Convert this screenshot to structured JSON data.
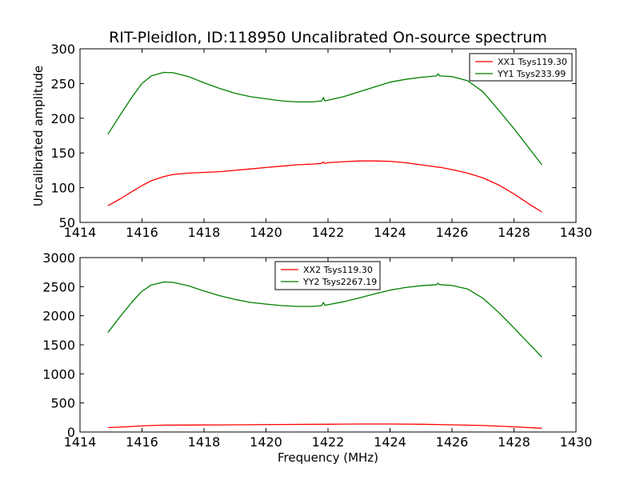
{
  "chart_data": [
    {
      "type": "line",
      "title": "RIT-Pleidlon, ID:118950 Uncalibrated On-source spectrum",
      "xlabel": "",
      "ylabel": "Uncalibrated amplitude",
      "xlim": [
        1414,
        1430
      ],
      "ylim": [
        50,
        300
      ],
      "xticks": [
        1414,
        1416,
        1418,
        1420,
        1422,
        1424,
        1426,
        1428,
        1430
      ],
      "yticks": [
        50,
        100,
        150,
        200,
        250,
        300
      ],
      "grid": false,
      "legend_position": "top-right",
      "series": [
        {
          "name": "XX1 Tsys119.30",
          "color": "#ff0000",
          "x": [
            1414.9,
            1415.3,
            1415.7,
            1416.0,
            1416.3,
            1416.7,
            1417.0,
            1417.5,
            1418.0,
            1418.5,
            1419.0,
            1419.5,
            1420.0,
            1420.5,
            1421.0,
            1421.5,
            1421.8,
            1421.85,
            1421.9,
            1422.0,
            1422.5,
            1423.0,
            1423.5,
            1424.0,
            1424.5,
            1425.0,
            1425.5,
            1425.55,
            1425.6,
            1426.0,
            1426.5,
            1427.0,
            1427.5,
            1428.0,
            1428.5,
            1428.9
          ],
          "y": [
            74,
            84,
            95,
            103,
            110,
            116,
            119,
            121,
            122,
            123,
            125,
            127,
            129,
            131,
            133,
            134,
            135,
            137,
            135,
            136,
            137.5,
            138.5,
            138.5,
            138,
            136,
            133,
            130,
            129,
            129.5,
            126,
            121,
            114,
            104,
            91,
            76,
            65
          ]
        },
        {
          "name": "YY1 Tsys233.99",
          "color": "#008000",
          "x": [
            1414.9,
            1415.3,
            1415.7,
            1416.0,
            1416.3,
            1416.7,
            1417.0,
            1417.5,
            1418.0,
            1418.5,
            1419.0,
            1419.5,
            1420.0,
            1420.5,
            1421.0,
            1421.5,
            1421.8,
            1421.85,
            1421.9,
            1422.0,
            1422.5,
            1423.0,
            1423.5,
            1424.0,
            1424.5,
            1425.0,
            1425.5,
            1425.55,
            1425.6,
            1426.0,
            1426.5,
            1427.0,
            1427.5,
            1428.0,
            1428.5,
            1428.9
          ],
          "y": [
            177,
            205,
            232,
            250,
            261,
            266,
            265.5,
            260,
            251,
            243,
            236,
            231,
            228,
            225,
            223.5,
            223.5,
            225,
            230,
            225,
            226,
            231,
            238,
            245,
            252,
            256,
            259,
            261,
            264,
            261,
            260,
            254,
            238,
            212,
            185,
            156,
            133
          ]
        }
      ]
    },
    {
      "type": "line",
      "title": "",
      "xlabel": "Frequency (MHz)",
      "ylabel": "",
      "xlim": [
        1414,
        1430
      ],
      "ylim": [
        0,
        3000
      ],
      "xticks": [
        1414,
        1416,
        1418,
        1420,
        1422,
        1424,
        1426,
        1428,
        1430
      ],
      "yticks": [
        0,
        500,
        1000,
        1500,
        2000,
        2500,
        3000
      ],
      "grid": false,
      "legend_position": "top-center",
      "series": [
        {
          "name": "XX2 Tsys119.30",
          "color": "#ff0000",
          "x": [
            1414.9,
            1415.5,
            1416.0,
            1416.7,
            1417.5,
            1418.5,
            1419.5,
            1420.5,
            1421.5,
            1422.0,
            1422.5,
            1423.0,
            1424.0,
            1425.0,
            1426.0,
            1427.0,
            1428.0,
            1428.9
          ],
          "y": [
            75,
            90,
            105,
            118,
            120,
            122,
            125,
            129,
            132,
            134,
            136,
            137,
            137,
            133,
            124,
            111,
            90,
            65
          ]
        },
        {
          "name": "YY2 Tsys2267.19",
          "color": "#008000",
          "x": [
            1414.9,
            1415.3,
            1415.7,
            1416.0,
            1416.3,
            1416.7,
            1417.0,
            1417.5,
            1418.0,
            1418.5,
            1419.0,
            1419.5,
            1420.0,
            1420.5,
            1421.0,
            1421.5,
            1421.8,
            1421.85,
            1421.9,
            1422.0,
            1422.5,
            1423.0,
            1423.5,
            1424.0,
            1424.5,
            1425.0,
            1425.5,
            1425.55,
            1425.6,
            1426.0,
            1426.5,
            1427.0,
            1427.5,
            1428.0,
            1428.5,
            1428.9
          ],
          "y": [
            1710,
            1990,
            2250,
            2420,
            2530,
            2580,
            2575,
            2515,
            2425,
            2345,
            2280,
            2230,
            2200,
            2175,
            2160,
            2160,
            2175,
            2230,
            2180,
            2190,
            2240,
            2305,
            2375,
            2440,
            2485,
            2515,
            2535,
            2560,
            2535,
            2520,
            2460,
            2300,
            2060,
            1790,
            1510,
            1290
          ]
        }
      ]
    }
  ]
}
